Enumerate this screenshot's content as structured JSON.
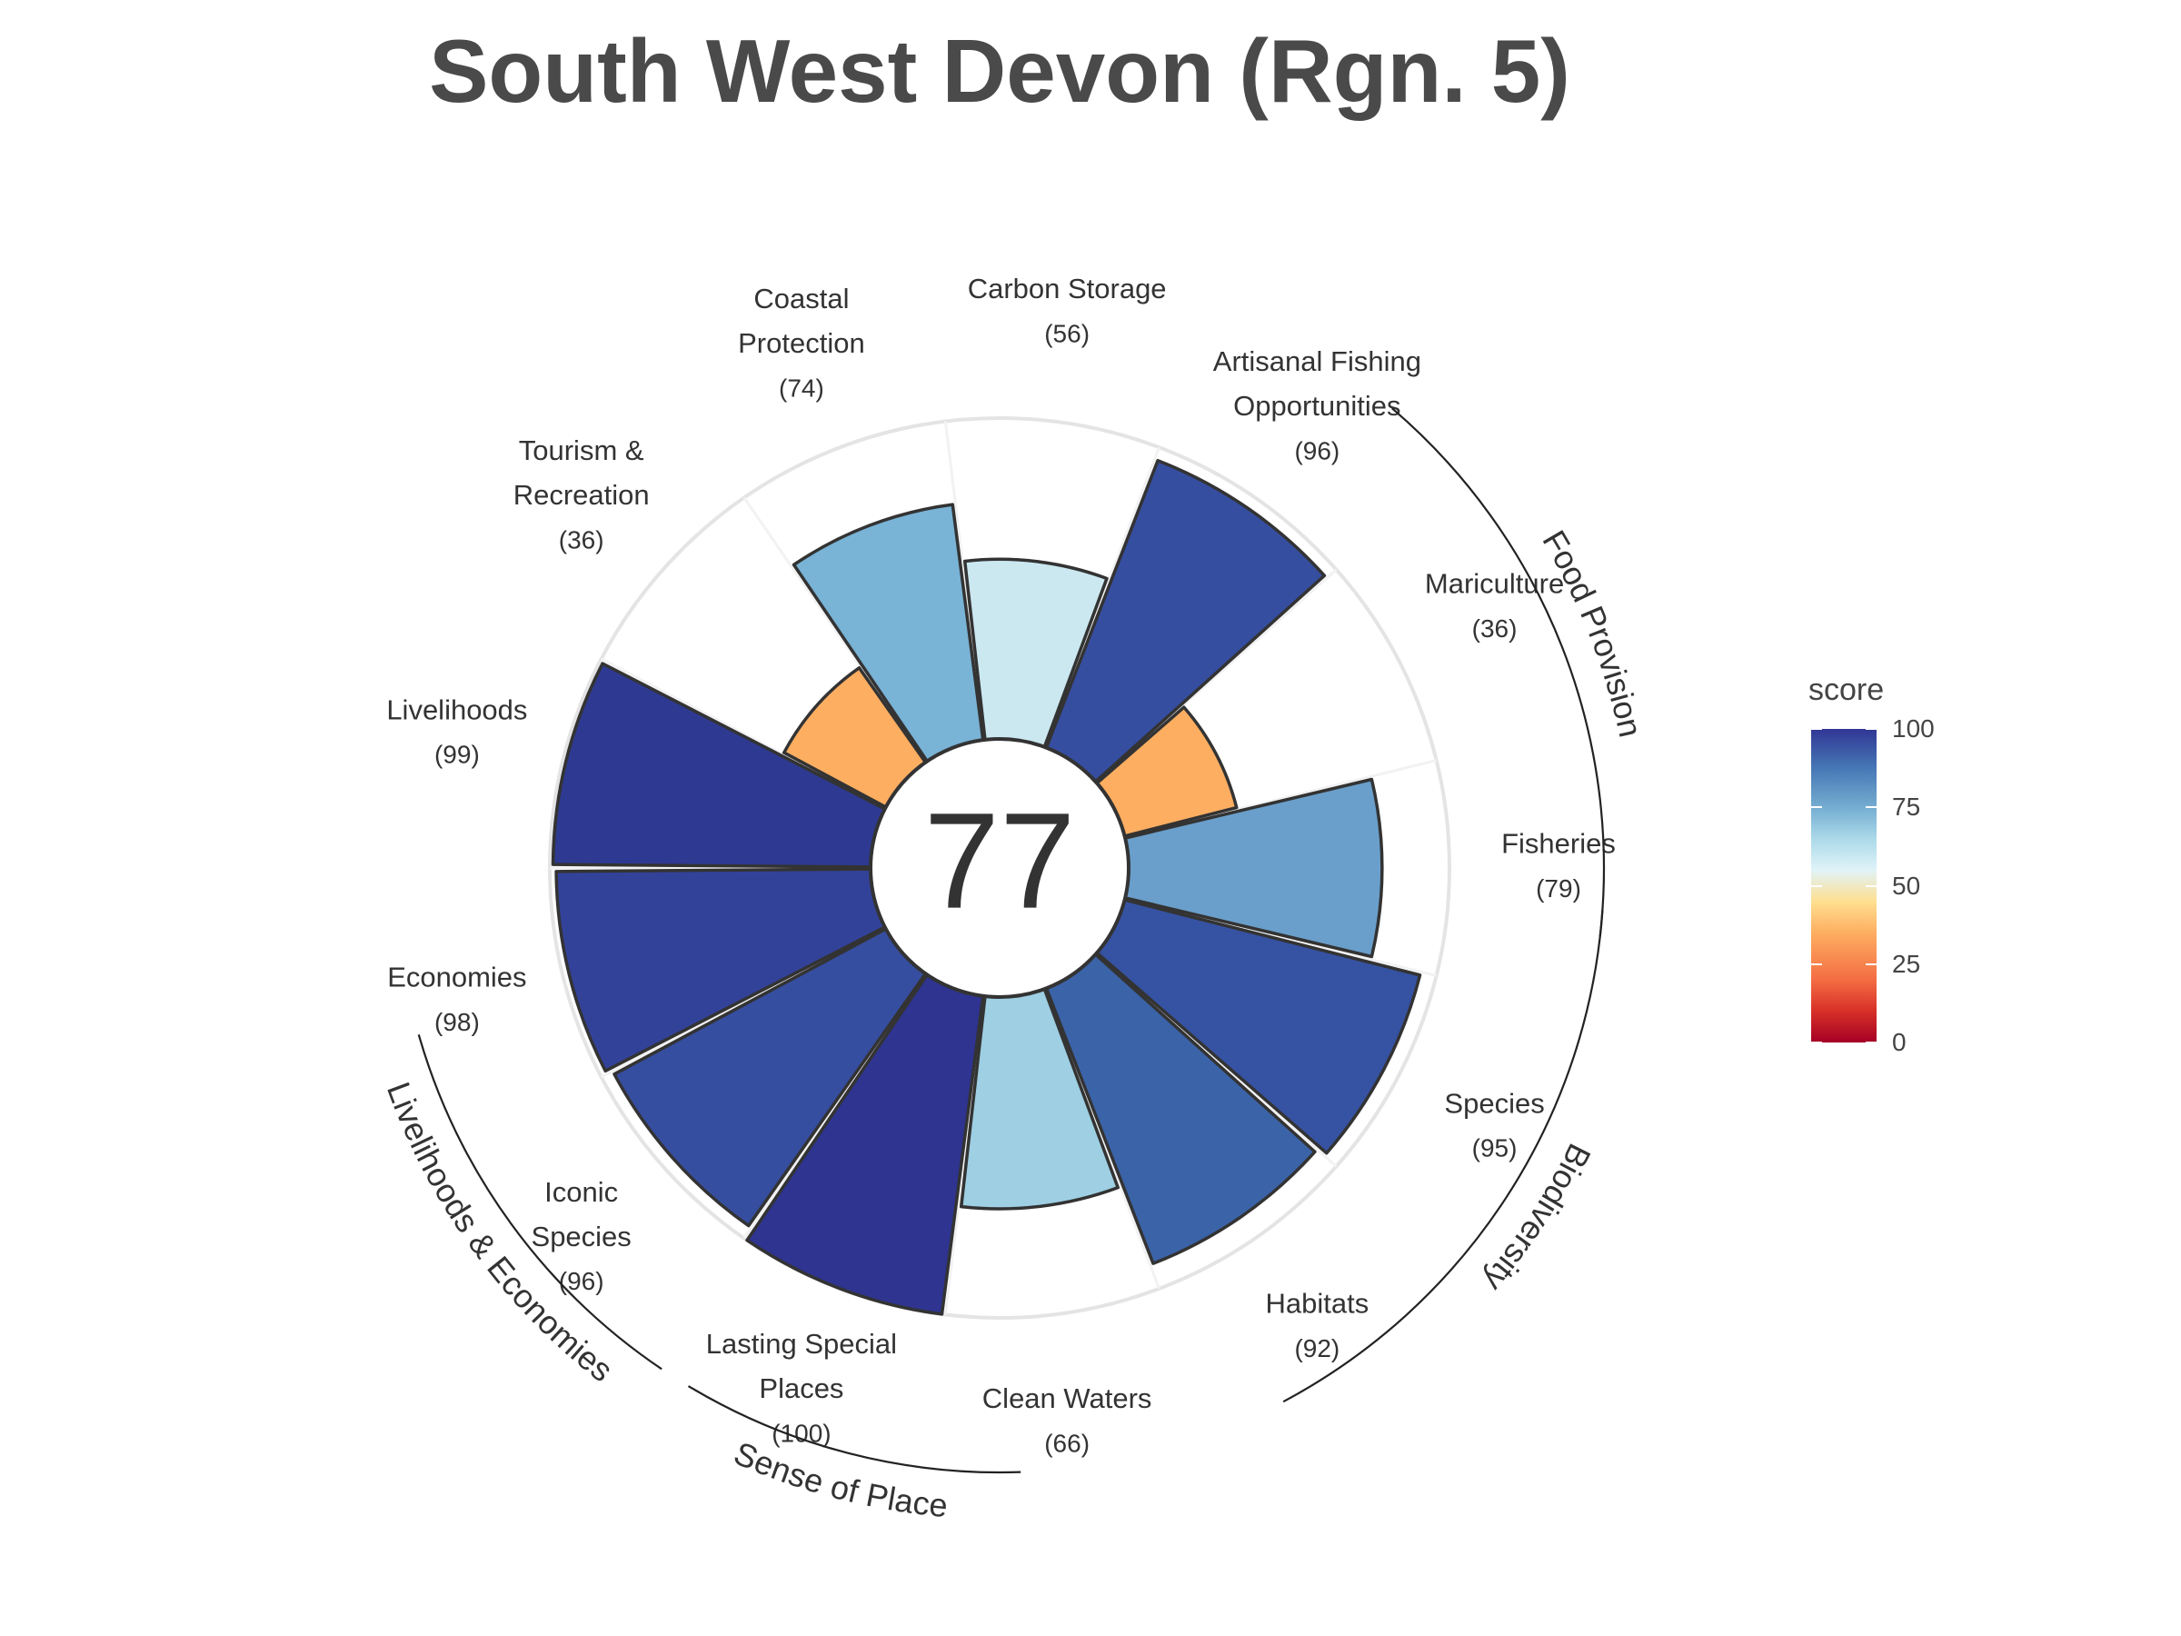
{
  "title": "South West Devon (Rgn. 5)",
  "center_score": "77",
  "chart_data": {
    "type": "flower",
    "max_score": 100,
    "petals": [
      {
        "label": "Fisheries",
        "score": 79,
        "score_label": "(79)",
        "color": "#6a9fcb"
      },
      {
        "label": "Mariculture",
        "score": 36,
        "score_label": "(36)",
        "color": "#fdae61"
      },
      {
        "label": "Artisanal Fishing Opportunities",
        "score": 96,
        "score_label": "(96)",
        "color": "#364ea0"
      },
      {
        "label": "Carbon Storage",
        "score": 56,
        "score_label": "(56)",
        "color": "#cbe8f1"
      },
      {
        "label": "Coastal Protection",
        "score": 74,
        "score_label": "(74)",
        "color": "#79b3d6"
      },
      {
        "label": "Tourism & Recreation",
        "score": 36,
        "score_label": "(36)",
        "color": "#fdae61"
      },
      {
        "label": "Livelihoods",
        "score": 99,
        "score_label": "(99)",
        "color": "#2e3a91"
      },
      {
        "label": "Economies",
        "score": 98,
        "score_label": "(98)",
        "color": "#334299"
      },
      {
        "label": "Iconic Species",
        "score": 96,
        "score_label": "(96)",
        "color": "#364ea0"
      },
      {
        "label": "Lasting Special Places",
        "score": 100,
        "score_label": "(100)",
        "color": "#2e348f"
      },
      {
        "label": "Clean Waters",
        "score": 66,
        "score_label": "(66)",
        "color": "#9ecfe3"
      },
      {
        "label": "Habitats",
        "score": 92,
        "score_label": "(92)",
        "color": "#3b63a8"
      },
      {
        "label": "Species",
        "score": 95,
        "score_label": "(95)",
        "color": "#3652a2"
      }
    ],
    "supragoals": [
      {
        "label": "Food Provision"
      },
      {
        "label": "Biodiversity"
      },
      {
        "label": "Sense of Place"
      },
      {
        "label": "Livelihoods & Economies"
      }
    ]
  },
  "legend": {
    "title": "score",
    "ticks": [
      "100",
      "75",
      "50",
      "25",
      "0"
    ]
  }
}
